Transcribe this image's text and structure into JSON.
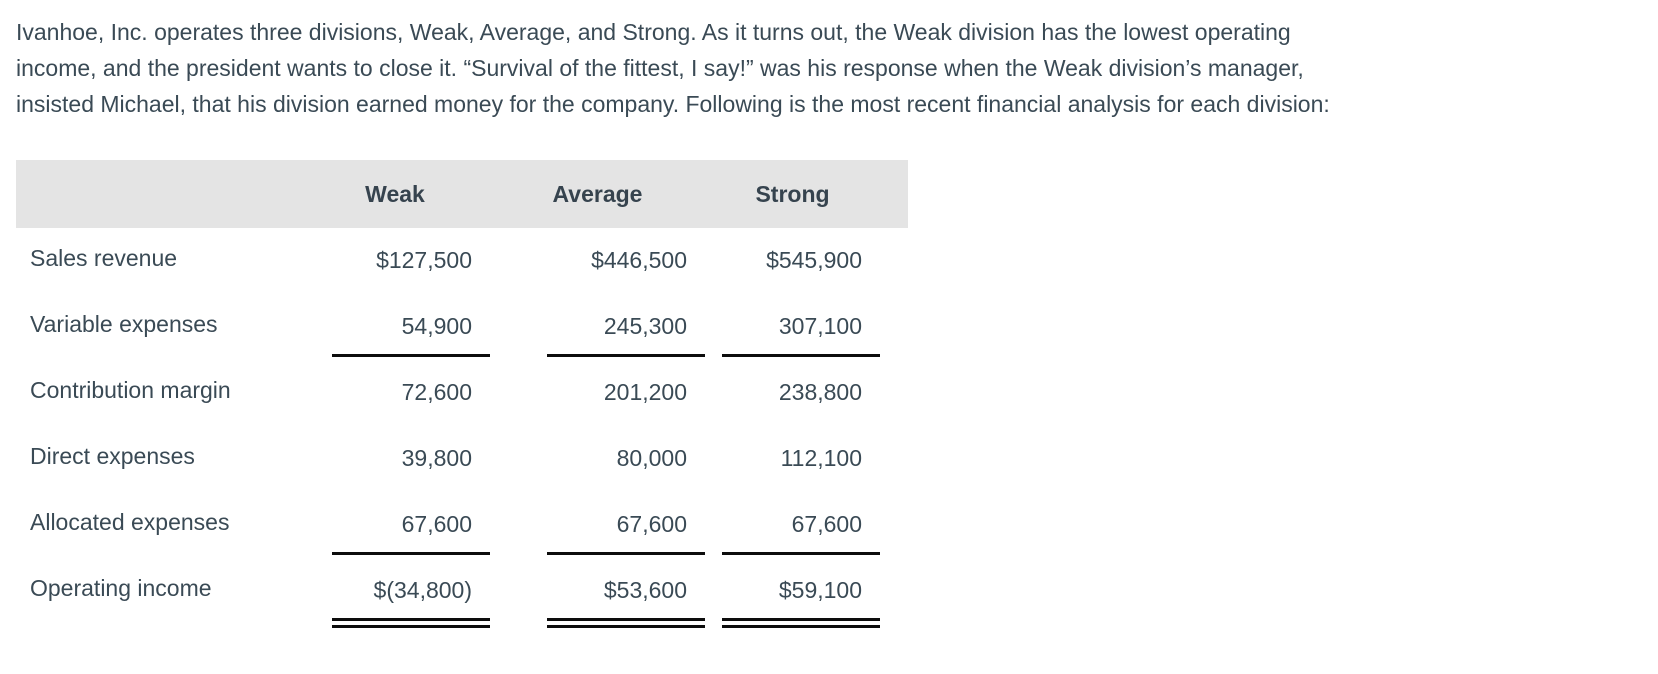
{
  "page": {
    "background": "#ffffff",
    "text_color": "#3a4a55",
    "header_bg": "#e4e4e4",
    "rule_color": "#0d0d0d"
  },
  "intro": {
    "lines": [
      "Ivanhoe, Inc. operates three divisions, Weak, Average, and Strong. As it turns out, the Weak division has the lowest operating",
      "income, and the president wants to close it. “Survival of the fittest, I say!” was his response when the Weak division’s manager,",
      "insisted Michael, that his division earned money for the company. Following is the most recent financial analysis for each division:"
    ]
  },
  "table": {
    "columns": [
      "Weak",
      "Average",
      "Strong"
    ],
    "rows": [
      {
        "label": "Sales revenue",
        "values": [
          "$127,500",
          "$446,500",
          "$545,900"
        ]
      },
      {
        "label": "Variable expenses",
        "values": [
          "54,900",
          "245,300",
          "307,100"
        ]
      },
      {
        "label": "Contribution margin",
        "values": [
          "72,600",
          "201,200",
          "238,800"
        ]
      },
      {
        "label": "Direct expenses",
        "values": [
          "39,800",
          "80,000",
          "112,100"
        ]
      },
      {
        "label": "Allocated expenses",
        "values": [
          "67,600",
          "67,600",
          "67,600"
        ]
      },
      {
        "label": "Operating income",
        "values": [
          "$(34,800)",
          "$53,600",
          "$59,100"
        ]
      }
    ]
  }
}
